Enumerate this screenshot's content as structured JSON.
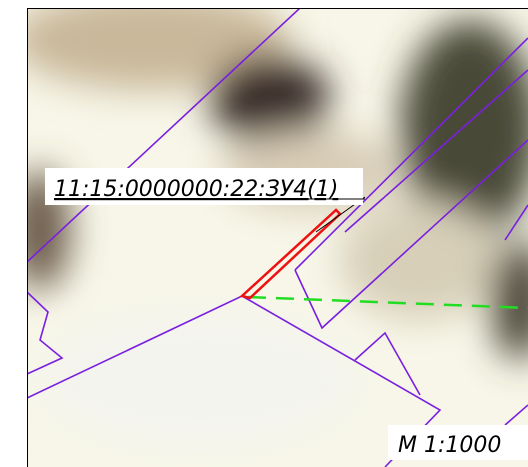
{
  "map": {
    "parcel_label": "11:15:0000000:22:ЗУ4(1)",
    "scale_label": "М 1:1000"
  }
}
